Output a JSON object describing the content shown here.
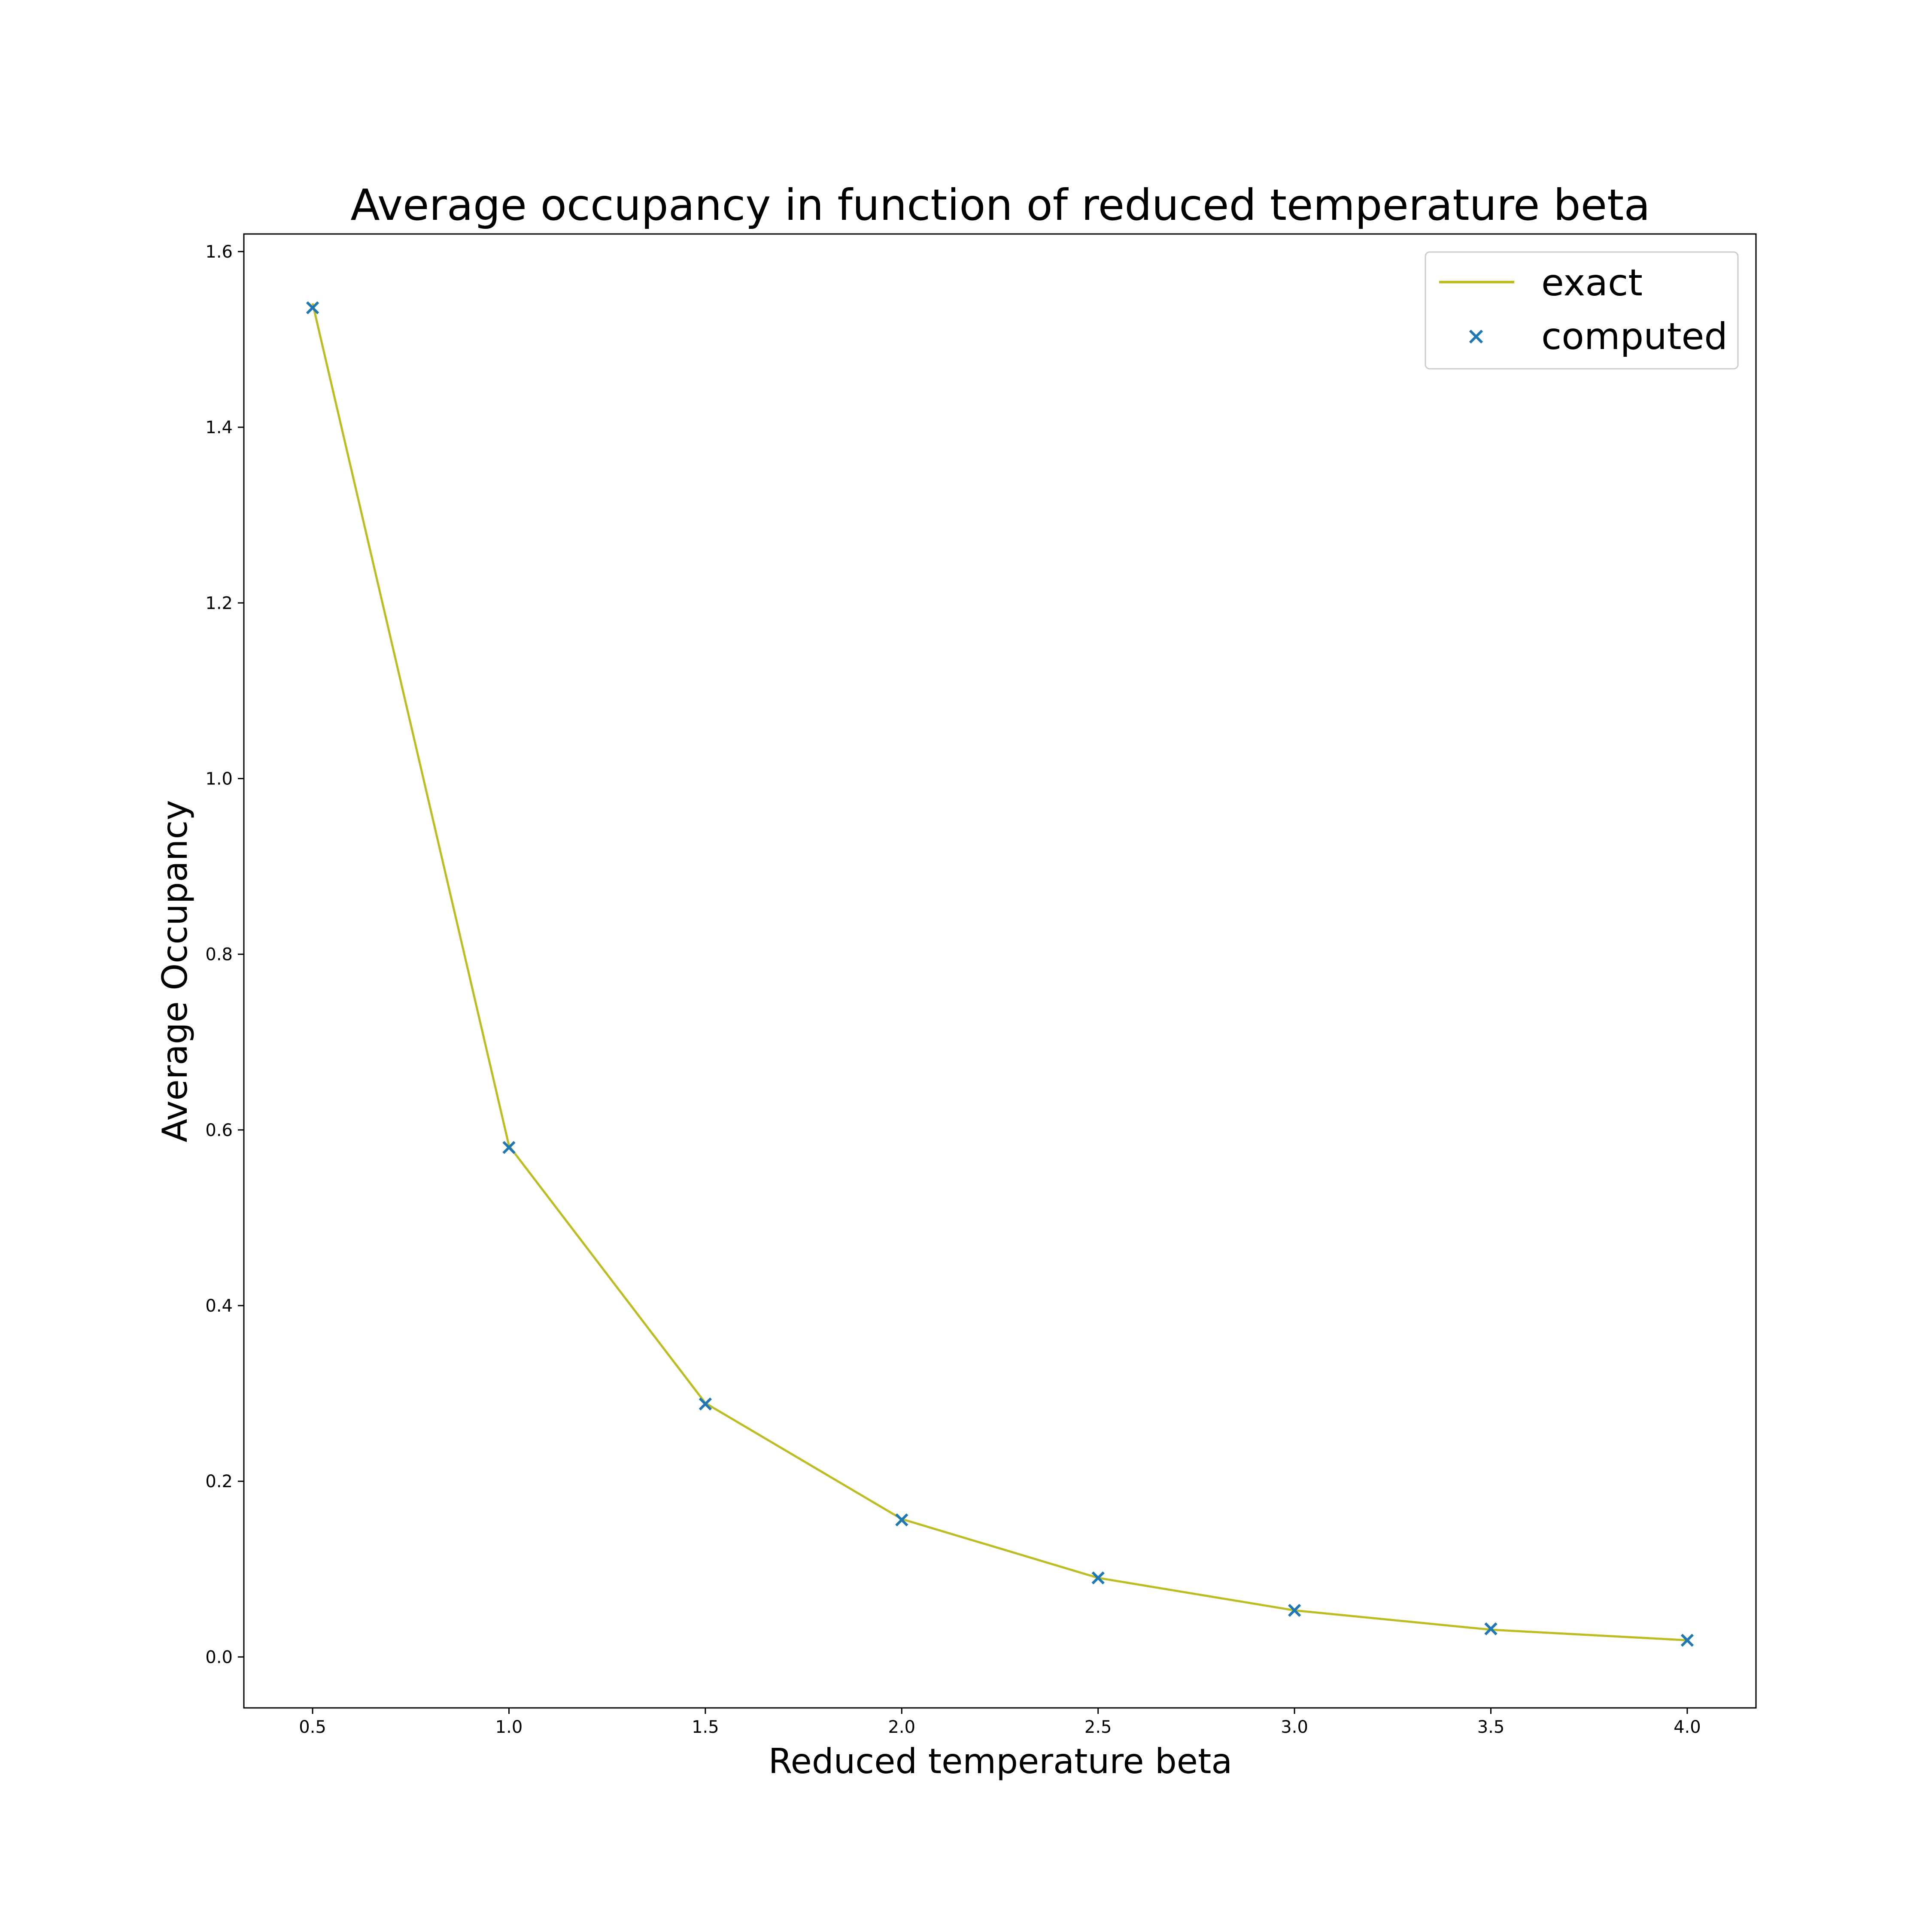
{
  "chart_data": {
    "type": "line",
    "title": "Average occupancy in function of reduced temperature beta",
    "xlabel": "Reduced temperature beta",
    "ylabel": "Average Occupancy",
    "xlim": [
      0.325,
      4.175
    ],
    "ylim": [
      -0.058,
      1.62
    ],
    "x_ticks": [
      0.5,
      1.0,
      1.5,
      2.0,
      2.5,
      3.0,
      3.5,
      4.0
    ],
    "x_tick_labels": [
      "0.5",
      "1.0",
      "1.5",
      "2.0",
      "2.5",
      "3.0",
      "3.5",
      "4.0"
    ],
    "y_ticks": [
      0.0,
      0.2,
      0.4,
      0.6,
      0.8,
      1.0,
      1.2,
      1.4,
      1.6
    ],
    "y_tick_labels": [
      "0.0",
      "0.2",
      "0.4",
      "0.6",
      "0.8",
      "1.0",
      "1.2",
      "1.4",
      "1.6"
    ],
    "grid": false,
    "legend_position": "top-right",
    "series": [
      {
        "name": "exact",
        "kind": "line",
        "color": "#bcbd22",
        "x": [
          0.5,
          1.0,
          1.5,
          2.0,
          2.5,
          3.0,
          3.5,
          4.0
        ],
        "y": [
          1.541,
          0.582,
          0.289,
          0.157,
          0.09,
          0.053,
          0.031,
          0.019
        ]
      },
      {
        "name": "computed",
        "kind": "marker-x",
        "color": "#1f77b4",
        "x": [
          0.5,
          1.0,
          1.5,
          2.0,
          2.5,
          3.0,
          3.5,
          4.0
        ],
        "y": [
          1.536,
          0.58,
          0.288,
          0.156,
          0.09,
          0.053,
          0.032,
          0.019
        ]
      }
    ]
  }
}
